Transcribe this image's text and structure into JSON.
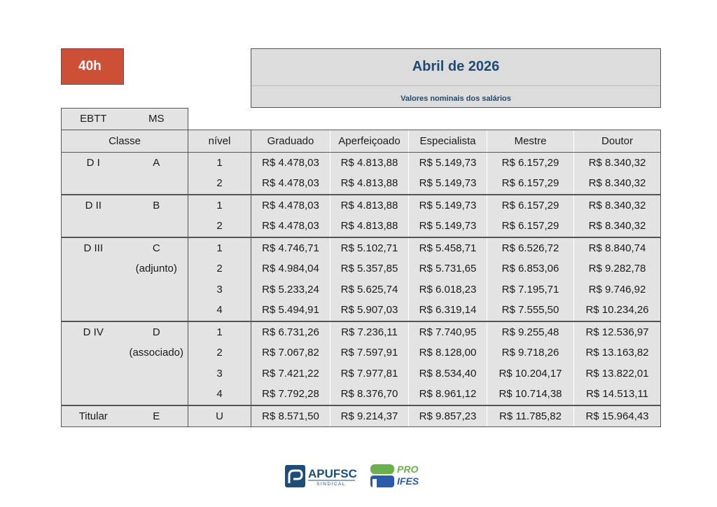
{
  "badge": {
    "hours": "40h"
  },
  "header": {
    "title": "Abril de 2026",
    "subtitle": "Valores nominais dos salários"
  },
  "table": {
    "career_labels": [
      "EBTT",
      "MS"
    ],
    "columns": {
      "classe": "Classe",
      "nivel": "nível",
      "graduado": "Graduado",
      "aperfeicoado": "Aperfeiçoado",
      "especialista": "Especialista",
      "mestre": "Mestre",
      "doutor": "Doutor"
    },
    "groups": [
      {
        "ebtt": "D I",
        "ms": "A",
        "ms_sub": "",
        "rows": [
          {
            "nivel": "1",
            "values": [
              "R$ 4.478,03",
              "R$ 4.813,88",
              "R$  5.149,73",
              "R$ 6.157,29",
              "R$ 8.340,32"
            ]
          },
          {
            "nivel": "2",
            "values": [
              "R$ 4.478,03",
              "R$ 4.813,88",
              "R$ 5.149,73",
              "R$ 6.157,29",
              "R$ 8.340,32"
            ]
          }
        ]
      },
      {
        "ebtt": "D II",
        "ms": "B",
        "ms_sub": "",
        "rows": [
          {
            "nivel": "1",
            "values": [
              "R$ 4.478,03",
              "R$ 4.813,88",
              "R$ 5.149,73",
              "R$ 6.157,29",
              "R$ 8.340,32"
            ]
          },
          {
            "nivel": "2",
            "values": [
              "R$ 4.478,03",
              "R$ 4.813,88",
              "R$ 5.149,73",
              "R$ 6.157,29",
              "R$ 8.340,32"
            ]
          }
        ]
      },
      {
        "ebtt": "D III",
        "ms": "C",
        "ms_sub": "(adjunto)",
        "rows": [
          {
            "nivel": "1",
            "values": [
              "R$ 4.746,71",
              "R$ 5.102,71",
              "R$ 5.458,71",
              "R$ 6.526,72",
              "R$ 8.840,74"
            ]
          },
          {
            "nivel": "2",
            "values": [
              "R$ 4.984,04",
              "R$ 5.357,85",
              "R$ 5.731,65",
              "R$ 6.853,06",
              "R$ 9.282,78"
            ]
          },
          {
            "nivel": "3",
            "values": [
              "R$ 5.233,24",
              "R$ 5.625,74",
              "R$ 6.018,23",
              "R$ 7.195,71",
              "R$ 9.746,92"
            ]
          },
          {
            "nivel": "4",
            "values": [
              "R$ 5.494,91",
              "R$ 5.907,03",
              "R$ 6.319,14",
              "R$ 7.555,50",
              "R$ 10.234,26"
            ]
          }
        ]
      },
      {
        "ebtt": "D IV",
        "ms": "D",
        "ms_sub": "(associado)",
        "rows": [
          {
            "nivel": "1",
            "values": [
              "R$ 6.731,26",
              "R$ 7.236,11",
              "R$ 7.740,95",
              "R$ 9.255,48",
              "R$ 12.536,97"
            ]
          },
          {
            "nivel": "2",
            "values": [
              "R$ 7.067,82",
              "R$ 7.597,91",
              "R$ 8.128,00",
              "R$ 9.718,26",
              "R$ 13.163,82"
            ]
          },
          {
            "nivel": "3",
            "values": [
              "R$ 7.421,22",
              "R$ 7.977,81",
              "R$ 8.534,40",
              "R$ 10.204,17",
              "R$ 13.822,01"
            ]
          },
          {
            "nivel": "4",
            "values": [
              "R$ 7.792,28",
              "R$ 8.376,70",
              "R$ 8.961,12",
              "R$ 10.714,38",
              "R$ 14.513,11"
            ]
          }
        ]
      },
      {
        "ebtt": "Titular",
        "ms": "E",
        "ms_sub": "",
        "rows": [
          {
            "nivel": "U",
            "values": [
              "R$ 8.571,50",
              "R$ 9.214,37",
              "R$ 9.857,23",
              "R$ 11.785,82",
              "R$ 15.964,43"
            ]
          }
        ]
      }
    ]
  },
  "footer": {
    "apufsc_name": "APUFSC",
    "apufsc_sub": "SINDICAL",
    "proifes_top": "PRO",
    "proifes_bottom": "IFES"
  },
  "colors": {
    "badge": "#cd4f36",
    "header_text": "#1f4b73",
    "cell_bg": "#e3e3e3",
    "apufsc_blue": "#1d4e7a",
    "proifes_green": "#6ab04c",
    "proifes_blue": "#2a5aa8"
  }
}
